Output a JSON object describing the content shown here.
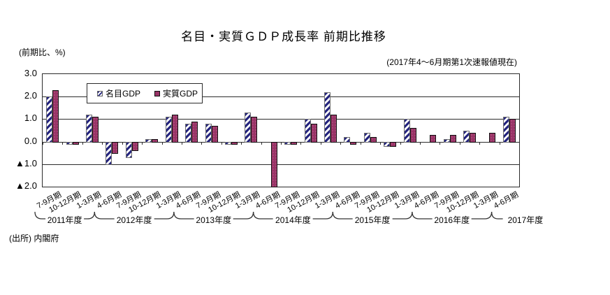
{
  "title": "名目・実質ＧＤＰ成長率 前期比推移",
  "vintage_note": "(2017年4～6月期第1次速報値現在)",
  "y_axis_unit": "(前期比、%)",
  "source": "(出所) 内閣府",
  "legend": {
    "nominal": "名目GDP",
    "real": "実質GDP"
  },
  "colors": {
    "nominal_stripe": "#24247e",
    "real_fill": "#993366",
    "real_dot": "#cc7fa8",
    "axis": "#2b2b2b"
  },
  "chart_data": {
    "type": "bar",
    "title": "名目・実質ＧＤＰ成長率 前期比推移",
    "ylabel": "(前期比、%)",
    "ylim": [
      -2.0,
      3.0
    ],
    "y_ticks": [
      "3.0",
      "2.0",
      "1.0",
      "0.0",
      "▲1.0",
      "▲2.0"
    ],
    "grid": true,
    "legend_position": "top-left-inside",
    "categories": [
      "7-9月期",
      "10-12月期",
      "1-3月期",
      "4-6月期",
      "7-9月期",
      "10-12月期",
      "1-3月期",
      "4-6月期",
      "7-9月期",
      "10-12月期",
      "1-3月期",
      "4-6月期",
      "7-9月期",
      "10-12月期",
      "1-3月期",
      "4-6月期",
      "7-9月期",
      "10-12月期",
      "1-3月期",
      "4-6月期",
      "7-9月期",
      "10-12月期",
      "1-3月期",
      "4-6月期"
    ],
    "series": [
      {
        "name": "名目GDP",
        "values": [
          2.0,
          -0.1,
          1.2,
          -1.0,
          -0.7,
          0.1,
          1.1,
          0.8,
          0.8,
          -0.1,
          1.3,
          0.0,
          -0.1,
          1.0,
          2.2,
          0.2,
          0.4,
          -0.2,
          1.0,
          0.0,
          0.1,
          0.5,
          0.0,
          1.1
        ]
      },
      {
        "name": "実質GDP",
        "values": [
          2.3,
          -0.1,
          1.1,
          -0.5,
          -0.4,
          0.1,
          1.2,
          0.9,
          0.7,
          -0.1,
          1.1,
          -2.0,
          -0.1,
          0.8,
          1.2,
          -0.1,
          0.2,
          -0.2,
          0.6,
          0.3,
          0.3,
          0.4,
          0.4,
          1.0
        ]
      }
    ],
    "fiscal_years": [
      {
        "label": "2011年度",
        "start": 0,
        "end": 2
      },
      {
        "label": "2012年度",
        "start": 3,
        "end": 6
      },
      {
        "label": "2013年度",
        "start": 7,
        "end": 10
      },
      {
        "label": "2014年度",
        "start": 11,
        "end": 14
      },
      {
        "label": "2015年度",
        "start": 15,
        "end": 18
      },
      {
        "label": "2016年度",
        "start": 19,
        "end": 22
      },
      {
        "label": "2017年度",
        "start": 23,
        "end": 23
      }
    ]
  }
}
